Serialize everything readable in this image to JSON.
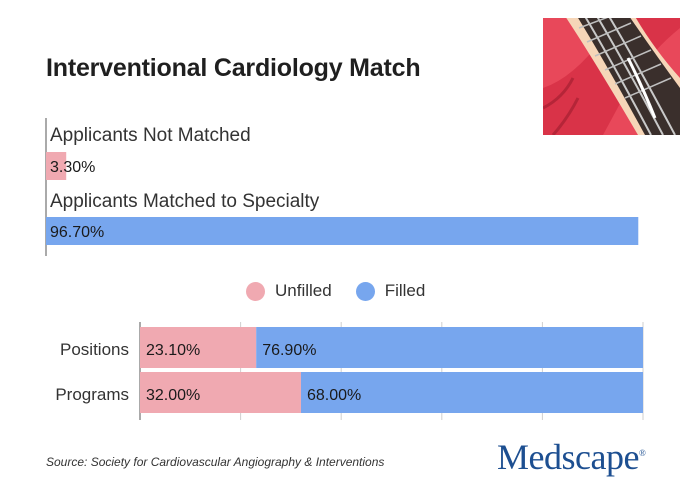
{
  "title": "Interventional Cardiology Match",
  "source": "Source: Society for Cardiovascular Angiography & Interventions",
  "logo": "Medscape",
  "photo_icon": "stent-in-artery-illustration",
  "colors": {
    "unfilled": "#f0a9b1",
    "filled": "#77a6ee",
    "axis": "#555555",
    "grid": "#cfcfcf"
  },
  "chart_data": [
    {
      "type": "bar",
      "orientation": "horizontal",
      "categories": [
        "Applicants Not Matched",
        "Applicants Matched to Specialty"
      ],
      "values": [
        3.3,
        96.7
      ],
      "value_labels": [
        "3.30%",
        "96.70%"
      ],
      "bar_colors": [
        "#f0a9b1",
        "#77a6ee"
      ],
      "xlim": [
        0,
        100
      ]
    },
    {
      "type": "bar",
      "orientation": "horizontal",
      "stacked": true,
      "categories": [
        "Positions",
        "Programs"
      ],
      "series": [
        {
          "name": "Unfilled",
          "values": [
            23.1,
            32.0
          ],
          "labels": [
            "23.10%",
            "32.00%"
          ],
          "color": "#f0a9b1"
        },
        {
          "name": "Filled",
          "values": [
            76.9,
            68.0
          ],
          "labels": [
            "76.90%",
            "68.00%"
          ],
          "color": "#77a6ee"
        }
      ],
      "xlim": [
        0,
        100
      ],
      "grid": true,
      "legend_position": "top-center"
    }
  ]
}
